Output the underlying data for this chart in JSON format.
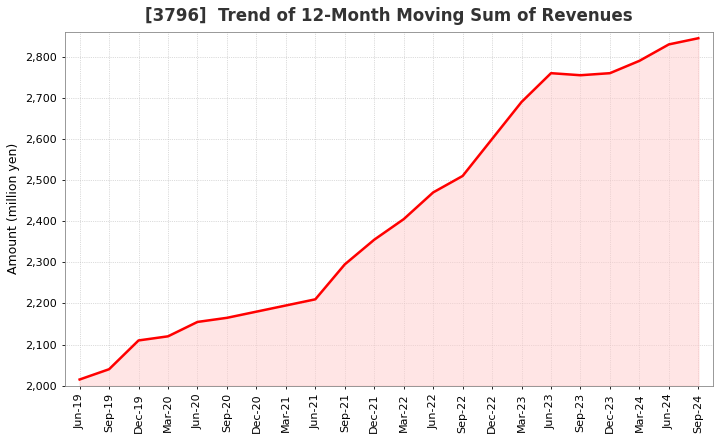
{
  "title": "[3796]  Trend of 12-Month Moving Sum of Revenues",
  "ylabel": "Amount (million yen)",
  "line_color": "#ff0000",
  "fill_color": "#ffcccc",
  "fill_alpha": 0.5,
  "background_color": "#ffffff",
  "plot_bg_color": "#ffffff",
  "grid_color": "#bbbbbb",
  "ylim": [
    2000,
    2860
  ],
  "yticks": [
    2000,
    2100,
    2200,
    2300,
    2400,
    2500,
    2600,
    2700,
    2800
  ],
  "x_labels": [
    "Jun-19",
    "Sep-19",
    "Dec-19",
    "Mar-20",
    "Jun-20",
    "Sep-20",
    "Dec-20",
    "Mar-21",
    "Jun-21",
    "Sep-21",
    "Dec-21",
    "Mar-22",
    "Jun-22",
    "Sep-22",
    "Dec-22",
    "Mar-23",
    "Jun-23",
    "Sep-23",
    "Dec-23",
    "Mar-24",
    "Jun-24",
    "Sep-24"
  ],
  "values": [
    2015,
    2040,
    2110,
    2120,
    2155,
    2165,
    2180,
    2195,
    2210,
    2295,
    2355,
    2405,
    2470,
    2510,
    2600,
    2690,
    2760,
    2755,
    2760,
    2790,
    2830,
    2845
  ],
  "title_fontsize": 12,
  "title_color": "#333333",
  "tick_fontsize": 8,
  "ylabel_fontsize": 9
}
